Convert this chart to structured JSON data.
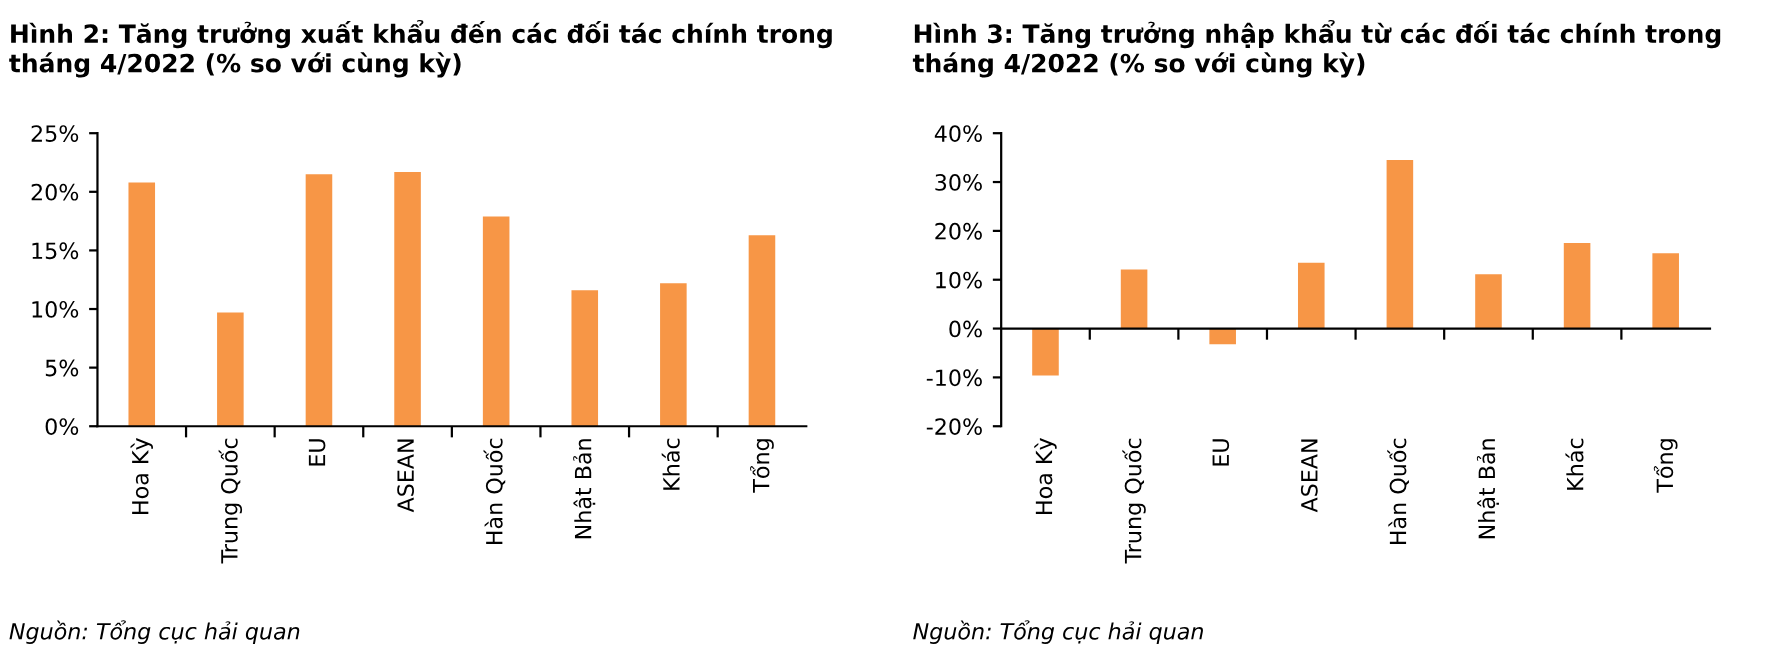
{
  "chart_data": [
    {
      "type": "bar",
      "title": "Hình 2: Tăng trưởng xuất khẩu đến các đối tác chính trong tháng 4/2022 (% so với cùng kỳ)",
      "categories": [
        "Hoa Kỳ",
        "Trung Quốc",
        "EU",
        "ASEAN",
        "Hàn Quốc",
        "Nhật Bản",
        "Khác",
        "Tổng"
      ],
      "series": [
        {
          "color": "#f79646",
          "values": [
            20.8,
            9.7,
            21.5,
            21.7,
            17.9,
            11.6,
            12.2,
            16.3
          ]
        }
      ],
      "ylim": [
        0,
        25
      ],
      "yticks": [
        {
          "value": 0,
          "label": "0%"
        },
        {
          "value": 5,
          "label": "5%"
        },
        {
          "value": 10,
          "label": "10%"
        },
        {
          "value": 15,
          "label": "15%"
        },
        {
          "value": 20,
          "label": "20%"
        },
        {
          "value": 25,
          "label": "25%"
        }
      ],
      "grid": false,
      "legend": false,
      "annotations": [
        "Nguồn: Tổng cục hải quan"
      ]
    },
    {
      "type": "bar",
      "title": "Hình 3: Tăng trưởng nhập khẩu từ các đối tác chính trong tháng 4/2022 (% so với cùng kỳ)",
      "categories": [
        "Hoa Kỳ",
        "Trung Quốc",
        "EU",
        "ASEAN",
        "Hàn Quốc",
        "Nhật Bản",
        "Khác",
        "Tổng"
      ],
      "series": [
        {
          "color": "#f79646",
          "values": [
            -9.6,
            12.1,
            -3.2,
            13.5,
            34.5,
            11.1,
            17.5,
            15.4
          ]
        }
      ],
      "ylim": [
        -20,
        40
      ],
      "yticks": [
        {
          "value": -20,
          "label": "-20%"
        },
        {
          "value": -10,
          "label": "-10%"
        },
        {
          "value": 0,
          "label": "0%"
        },
        {
          "value": 10,
          "label": "10%"
        },
        {
          "value": 20,
          "label": "20%"
        },
        {
          "value": 30,
          "label": "30%"
        },
        {
          "value": 40,
          "label": "40%"
        }
      ],
      "legend": false,
      "annotations": [
        "Nguồn: Tổng cục hải quan"
      ]
    }
  ]
}
